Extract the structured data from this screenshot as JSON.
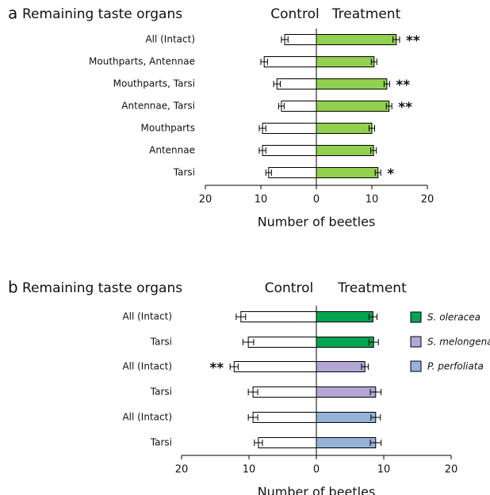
{
  "chart_data": [
    {
      "type": "diverging-bar",
      "panel": "a",
      "category_title": "Remaining taste organs",
      "categories": [
        "All (Intact)",
        "Mouthparts, Antennae",
        "Mouthparts, Tarsi",
        "Antennae, Tarsi",
        "Mouthparts",
        "Antennae",
        "Tarsi"
      ],
      "series": [
        {
          "name": "Control",
          "color": "#ffffff",
          "values": [
            -5.7,
            -9.4,
            -7.1,
            -6.3,
            -9.7,
            -9.7,
            -8.6
          ],
          "errors": [
            0.6,
            0.6,
            0.6,
            0.5,
            0.6,
            0.6,
            0.5
          ],
          "significance": [
            null,
            null,
            null,
            null,
            null,
            null,
            null
          ]
        },
        {
          "name": "Treatment",
          "color": "#92d050",
          "values": [
            14.4,
            10.4,
            12.7,
            13.1,
            10.0,
            10.3,
            11.1
          ],
          "errors": [
            0.6,
            0.5,
            0.5,
            0.5,
            0.5,
            0.5,
            0.5
          ],
          "significance": [
            "**",
            null,
            "**",
            "**",
            null,
            null,
            "*"
          ]
        }
      ],
      "xlabel": "Number of beetles",
      "xlim": [
        -20,
        20
      ],
      "xticks": [
        {
          "value": -20,
          "label": "20"
        },
        {
          "value": -10,
          "label": "10"
        },
        0,
        10,
        20
      ]
    },
    {
      "type": "diverging-bar",
      "panel": "b",
      "category_title": "Remaining taste organs",
      "categories": [
        "All (Intact)",
        "Tarsi",
        "All (Intact)",
        "Tarsi",
        "All (Intact)",
        "Tarsi"
      ],
      "series": [
        {
          "name": "Control",
          "color": "#ffffff",
          "values": [
            -11.2,
            -10.1,
            -12.2,
            -9.4,
            -9.4,
            -8.6
          ],
          "errors": [
            0.7,
            0.8,
            0.6,
            0.7,
            0.7,
            0.6
          ],
          "significance": [
            null,
            null,
            "**",
            null,
            null,
            null
          ]
        },
        {
          "name": "Treatment",
          "colors": [
            "#00a550",
            "#00a550",
            "#b4a7d6",
            "#b4a7d6",
            "#95b3d7",
            "#95b3d7"
          ],
          "values": [
            8.4,
            8.5,
            7.2,
            8.8,
            8.8,
            8.8
          ],
          "errors": [
            0.6,
            0.7,
            0.5,
            0.8,
            0.7,
            0.8
          ],
          "significance": [
            null,
            null,
            null,
            null,
            null,
            null
          ]
        }
      ],
      "legend": [
        {
          "name": "S. oleracea",
          "color": "#00a550"
        },
        {
          "name": "S. melongena",
          "color": "#b4a7d6"
        },
        {
          "name": "P. perfoliata",
          "color": "#95b3d7"
        }
      ],
      "xlabel": "Number of beetles",
      "xlim": [
        -20,
        20
      ],
      "xticks": [
        {
          "value": -20,
          "label": "20"
        },
        {
          "value": -10,
          "label": "10"
        },
        0,
        10,
        20
      ]
    }
  ]
}
